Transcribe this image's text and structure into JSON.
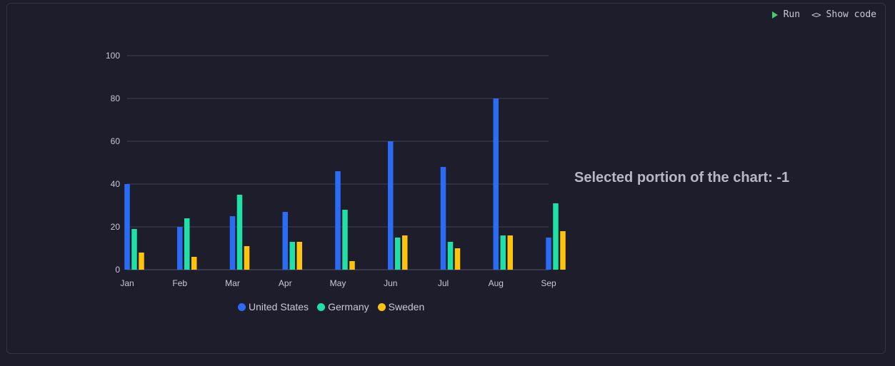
{
  "toolbar": {
    "run_label": "Run",
    "run_icon": "play-icon",
    "show_code_label": "Show code",
    "show_code_icon": "code-brackets-icon",
    "run_icon_color": "#3ecf6e"
  },
  "selection": {
    "text": "Selected portion of the chart: -1"
  },
  "chart_data": {
    "type": "bar",
    "title": "",
    "xlabel": "",
    "ylabel": "",
    "categories": [
      "Jan",
      "Feb",
      "Mar",
      "Apr",
      "May",
      "Jun",
      "Jul",
      "Aug",
      "Sep"
    ],
    "ylim": [
      0,
      100
    ],
    "yticks": [
      0,
      20,
      40,
      60,
      80,
      100
    ],
    "grid": true,
    "legend_position": "bottom",
    "series": [
      {
        "name": "United States",
        "color": "#2b6cf6",
        "values": [
          40,
          20,
          25,
          27,
          46,
          60,
          48,
          80,
          15
        ]
      },
      {
        "name": "Germany",
        "color": "#1fe0a6",
        "values": [
          19,
          24,
          35,
          13,
          28,
          15,
          13,
          16,
          31
        ]
      },
      {
        "name": "Sweden",
        "color": "#ffc30b",
        "values": [
          8,
          6,
          11,
          13,
          4,
          16,
          10,
          16,
          18
        ]
      }
    ]
  }
}
